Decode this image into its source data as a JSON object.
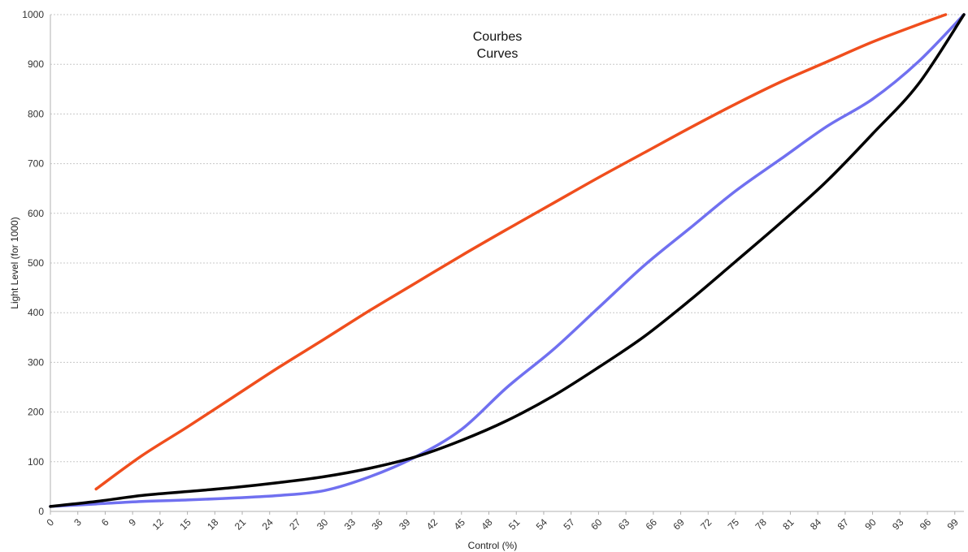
{
  "chart_data": {
    "type": "line",
    "title": "Courbes",
    "subtitle": "Curves",
    "xlabel": "Control  (%)",
    "ylabel": "Light Level (for 1000)",
    "xlim": [
      0,
      100
    ],
    "ylim": [
      0,
      1000
    ],
    "x_ticks": [
      0,
      3,
      6,
      9,
      12,
      15,
      18,
      21,
      24,
      27,
      30,
      33,
      36,
      39,
      42,
      45,
      48,
      51,
      54,
      57,
      60,
      63,
      66,
      69,
      72,
      75,
      78,
      81,
      84,
      87,
      90,
      93,
      96,
      99
    ],
    "y_ticks": [
      0,
      100,
      200,
      300,
      400,
      500,
      600,
      700,
      800,
      900,
      1000
    ],
    "grid": "horizontal",
    "legend": "none",
    "series": [
      {
        "color": "#f04e1d",
        "x": [
          5,
          10,
          15,
          20,
          25,
          30,
          35,
          40,
          45,
          50,
          55,
          60,
          65,
          70,
          75,
          80,
          85,
          90,
          95,
          98
        ],
        "y": [
          45,
          112,
          170,
          230,
          290,
          347,
          405,
          460,
          515,
          568,
          620,
          672,
          722,
          772,
          820,
          865,
          905,
          945,
          980,
          1000
        ]
      },
      {
        "color": "#7070f0",
        "x": [
          0,
          5,
          10,
          15,
          20,
          25,
          30,
          35,
          40,
          45,
          50,
          55,
          60,
          65,
          70,
          75,
          80,
          85,
          90,
          95,
          100
        ],
        "y": [
          10,
          15,
          20,
          23,
          27,
          32,
          42,
          70,
          110,
          165,
          250,
          325,
          410,
          495,
          570,
          645,
          710,
          775,
          830,
          905,
          1000
        ]
      },
      {
        "color": "#000000",
        "x": [
          0,
          5,
          10,
          15,
          20,
          25,
          30,
          35,
          40,
          45,
          50,
          55,
          60,
          65,
          70,
          75,
          80,
          85,
          90,
          95,
          100
        ],
        "y": [
          10,
          20,
          32,
          40,
          48,
          58,
          70,
          87,
          110,
          143,
          183,
          232,
          290,
          352,
          425,
          503,
          582,
          665,
          760,
          860,
          1000
        ]
      }
    ]
  }
}
